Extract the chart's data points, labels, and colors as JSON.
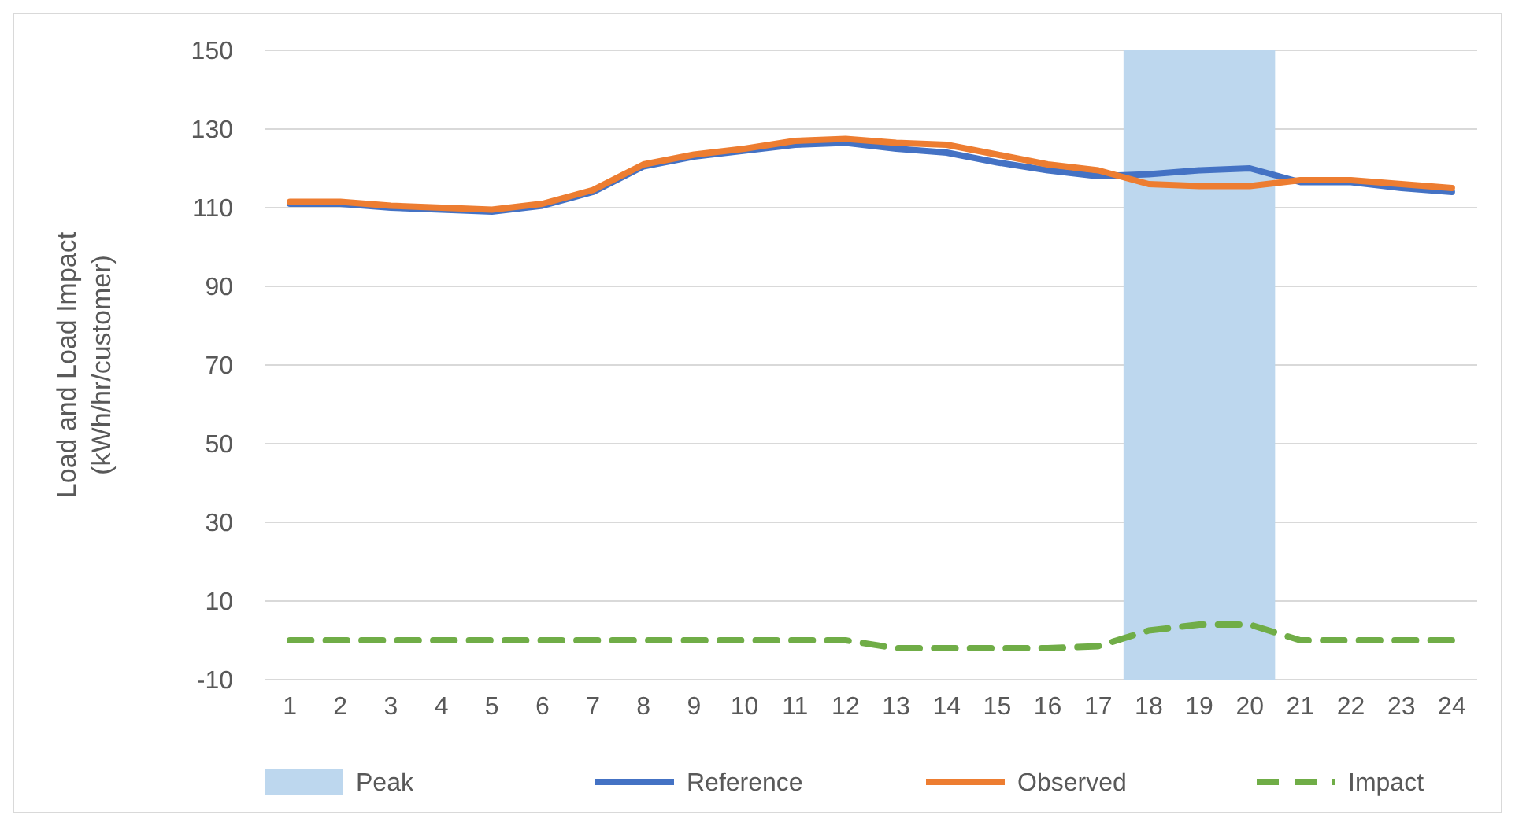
{
  "chart_data": {
    "type": "line",
    "ylabel": "Load and Load Impact\n(kWh/hr/customer)",
    "x": [
      1,
      2,
      3,
      4,
      5,
      6,
      7,
      8,
      9,
      10,
      11,
      12,
      13,
      14,
      15,
      16,
      17,
      18,
      19,
      20,
      21,
      22,
      23,
      24
    ],
    "xlim": [
      0.5,
      24.5
    ],
    "xticks": [
      1,
      2,
      3,
      4,
      5,
      6,
      7,
      8,
      9,
      10,
      11,
      12,
      13,
      14,
      15,
      16,
      17,
      18,
      19,
      20,
      21,
      22,
      23,
      24
    ],
    "ylim": [
      -10,
      150
    ],
    "yticks": [
      -10,
      10,
      30,
      50,
      70,
      90,
      110,
      130,
      150
    ],
    "grid": "y",
    "legend": "bottom",
    "bands": [
      {
        "axis": "x",
        "from": 17.5,
        "to": 20.5,
        "label": "Peak",
        "color": "#bdd7ee"
      }
    ],
    "series": [
      {
        "name": "Reference",
        "color": "#4472c4",
        "line_style": "solid",
        "values": [
          111,
          111,
          110,
          109.5,
          109,
          110.5,
          114,
          120.5,
          123,
          124.5,
          126,
          126.5,
          125,
          124,
          121.5,
          119.5,
          118,
          118.5,
          119.5,
          120,
          116.5,
          116.5,
          115,
          114
        ]
      },
      {
        "name": "Observed",
        "color": "#ed7d31",
        "line_style": "solid",
        "values": [
          111.5,
          111.5,
          110.5,
          110,
          109.5,
          111,
          114.5,
          121,
          123.5,
          125,
          127,
          127.5,
          126.5,
          126,
          123.5,
          121,
          119.5,
          116,
          115.5,
          115.5,
          117,
          117,
          116,
          115
        ]
      },
      {
        "name": "Impact",
        "color": "#70ad47",
        "line_style": "dashed",
        "values": [
          0,
          0,
          0,
          0,
          0,
          0,
          0,
          0,
          0,
          0,
          0,
          0,
          -2,
          -2,
          -2,
          -2,
          -1.5,
          2.5,
          4,
          4,
          0,
          0,
          0,
          0
        ]
      }
    ]
  }
}
